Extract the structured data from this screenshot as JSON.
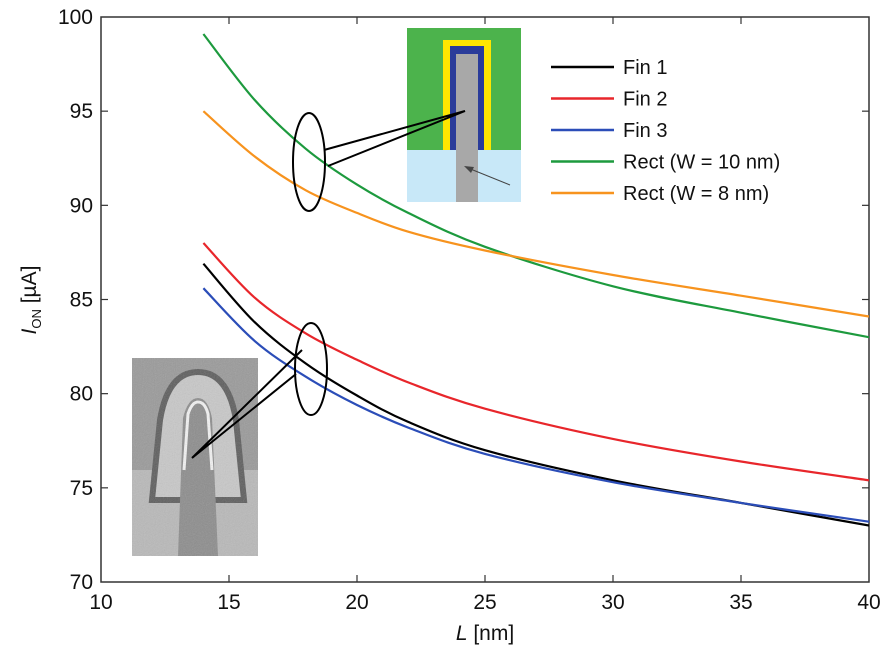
{
  "chart_data": {
    "type": "line",
    "title": "",
    "xlabel": {
      "italic": "L",
      "rest": " [nm]"
    },
    "ylabel": {
      "italic": "I",
      "sub": "ON",
      "rest": " [µA]"
    },
    "xlim": [
      10,
      40
    ],
    "ylim": [
      70,
      100
    ],
    "x_ticks": [
      10,
      15,
      20,
      25,
      30,
      35,
      40
    ],
    "y_ticks": [
      70,
      75,
      80,
      85,
      90,
      95,
      100
    ],
    "grid": false,
    "legend_position": "top-right",
    "x": [
      14,
      16,
      18,
      20,
      22,
      25,
      30,
      35,
      40
    ],
    "series": [
      {
        "name": "Fin 1",
        "color": "#000000",
        "values": [
          86.9,
          83.8,
          81.6,
          79.9,
          78.5,
          77.0,
          75.4,
          74.2,
          73.0
        ]
      },
      {
        "name": "Fin 2",
        "color": "#e8262b",
        "values": [
          88.0,
          85.1,
          83.2,
          81.8,
          80.6,
          79.2,
          77.6,
          76.4,
          75.4
        ]
      },
      {
        "name": "Fin 3",
        "color": "#2b4db8",
        "values": [
          85.6,
          82.8,
          80.9,
          79.4,
          78.2,
          76.8,
          75.3,
          74.2,
          73.2
        ]
      },
      {
        "name": "Rect (W = 10 nm)",
        "color": "#1d9a3e",
        "values": [
          99.1,
          95.6,
          93.0,
          91.1,
          89.6,
          87.8,
          85.7,
          84.3,
          83.0
        ]
      },
      {
        "name": "Rect (W = 8 nm)",
        "color": "#f7931e",
        "values": [
          95.0,
          92.6,
          90.8,
          89.6,
          88.6,
          87.6,
          86.3,
          85.2,
          84.1
        ]
      }
    ]
  },
  "insets": {
    "schematic": {
      "colors": {
        "oxide": "#4cb34c",
        "gate": "#ffe600",
        "liner": "#2a3c9a",
        "fin": "#a8a8a8",
        "substrate": "#c8e8f8"
      }
    },
    "tem_image": {
      "colors": {
        "background": "#9a9a9a"
      }
    }
  }
}
